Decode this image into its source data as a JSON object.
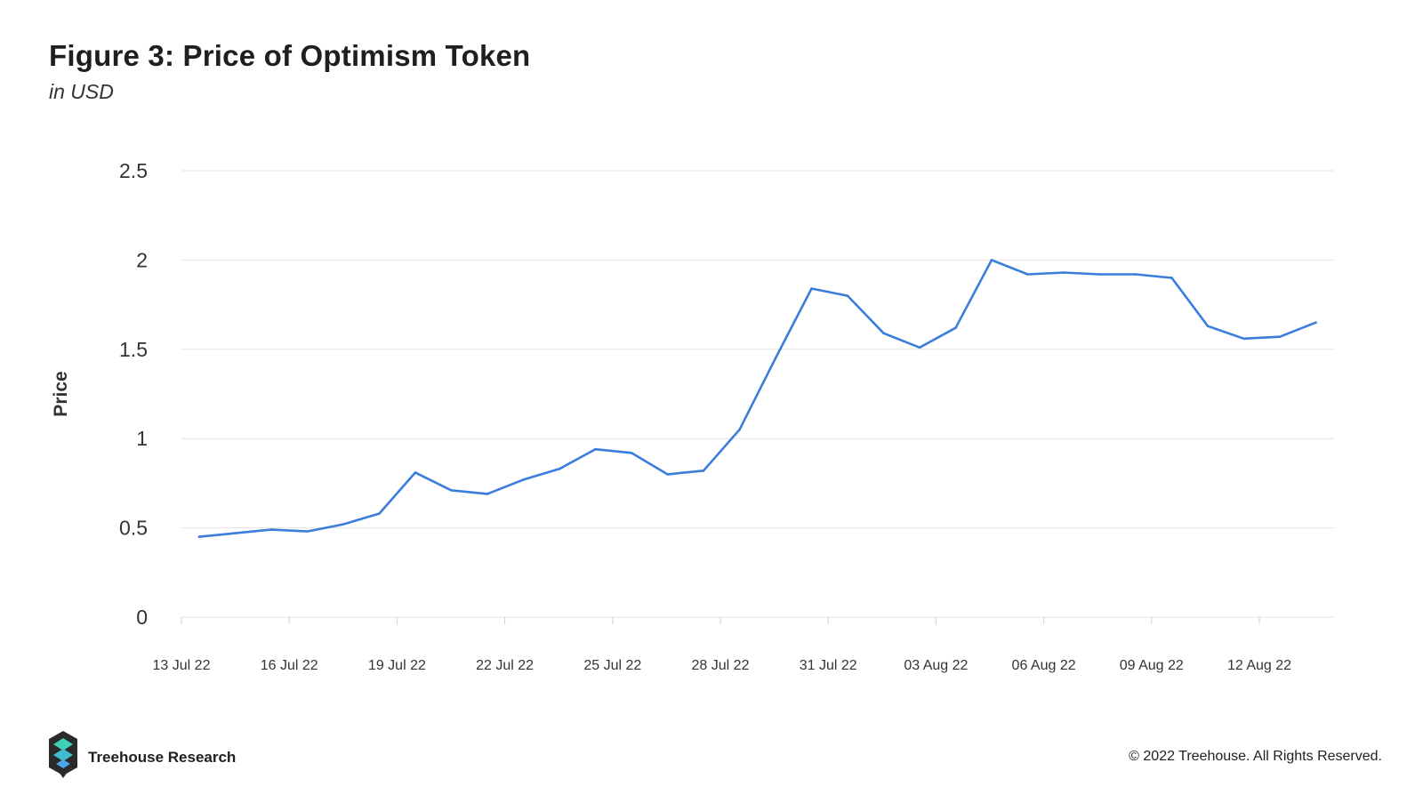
{
  "header": {
    "title": "Figure 3: Price of Optimism Token",
    "subtitle": "in USD"
  },
  "footer": {
    "brand": "Treehouse Research",
    "copyright": "© 2022 Treehouse. All Rights Reserved."
  },
  "colors": {
    "line": "#3b7ddd",
    "grid": "#e3e3e3",
    "logo_dark": "#2a2a2a",
    "logo_teal": "#3fd0b6",
    "logo_blue": "#4aa6e8"
  },
  "chart_data": {
    "type": "line",
    "title": "Figure 3: Price of Optimism Token",
    "subtitle": "in USD",
    "xlabel": "",
    "ylabel": "Price",
    "ylim": [
      0,
      2.5
    ],
    "yticks": [
      "0",
      "0.5",
      "1",
      "1.5",
      "2",
      "2.5"
    ],
    "xticks": [
      "13 Jul 22",
      "16 Jul 22",
      "19 Jul 22",
      "22 Jul 22",
      "25 Jul 22",
      "28 Jul 22",
      "31 Jul 22",
      "03 Aug 22",
      "06 Aug 22",
      "09 Aug 22",
      "12 Aug 22"
    ],
    "grid": true,
    "legend": "none",
    "x": [
      "13 Jul 22",
      "14 Jul 22",
      "15 Jul 22",
      "16 Jul 22",
      "17 Jul 22",
      "18 Jul 22",
      "19 Jul 22",
      "20 Jul 22",
      "21 Jul 22",
      "22 Jul 22",
      "23 Jul 22",
      "24 Jul 22",
      "25 Jul 22",
      "26 Jul 22",
      "27 Jul 22",
      "28 Jul 22",
      "29 Jul 22",
      "30 Jul 22",
      "31 Jul 22",
      "01 Aug 22",
      "02 Aug 22",
      "03 Aug 22",
      "04 Aug 22",
      "05 Aug 22",
      "06 Aug 22",
      "07 Aug 22",
      "08 Aug 22",
      "09 Aug 22",
      "10 Aug 22",
      "11 Aug 22",
      "12 Aug 22",
      "13 Aug 22"
    ],
    "series": [
      {
        "values": [
          0.45,
          0.47,
          0.49,
          0.48,
          0.52,
          0.58,
          0.81,
          0.71,
          0.69,
          0.77,
          0.83,
          0.94,
          0.92,
          0.8,
          0.82,
          1.05,
          1.45,
          1.84,
          1.8,
          1.59,
          1.51,
          1.62,
          2.0,
          1.92,
          1.93,
          1.92,
          1.92,
          1.9,
          1.63,
          1.56,
          1.57,
          1.65
        ]
      }
    ]
  }
}
